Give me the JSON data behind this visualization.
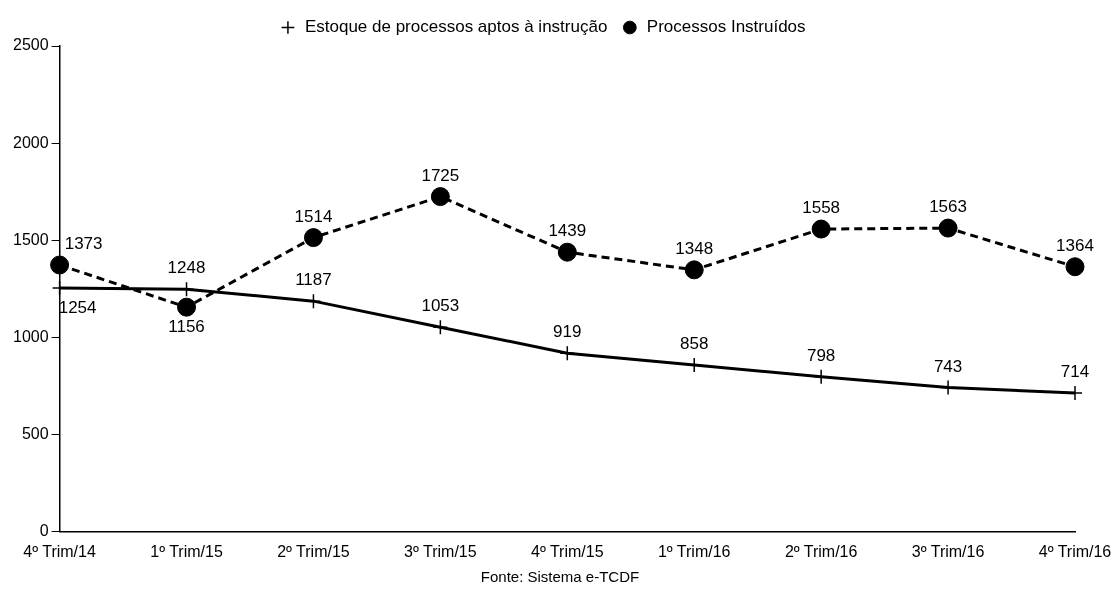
{
  "chart_data": {
    "type": "line",
    "categories": [
      "4º Trim/14",
      "1º Trim/15",
      "2º Trim/15",
      "3º Trim/15",
      "4º Trim/15",
      "1º Trim/16",
      "2º Trim/16",
      "3º Trim/16",
      "4º Trim/16"
    ],
    "series": [
      {
        "name": "Estoque de processos aptos à instrução",
        "color": "#000000",
        "marker": "cross",
        "line_style": "solid",
        "values": [
          1254,
          1248,
          1187,
          1053,
          919,
          858,
          798,
          743,
          714
        ]
      },
      {
        "name": "Processos Instruídos",
        "color": "#000000",
        "marker": "circle",
        "line_style": "dashed",
        "values": [
          1373,
          1156,
          1514,
          1725,
          1439,
          1348,
          1558,
          1563,
          1364
        ]
      }
    ],
    "ylim": [
      0,
      2500
    ],
    "yticks": [
      0,
      500,
      1000,
      1500,
      2000,
      2500
    ],
    "grid": false,
    "legend": "top",
    "data_labels": true,
    "annotations": [
      "Fonte: Sistema e-TCDF"
    ]
  }
}
